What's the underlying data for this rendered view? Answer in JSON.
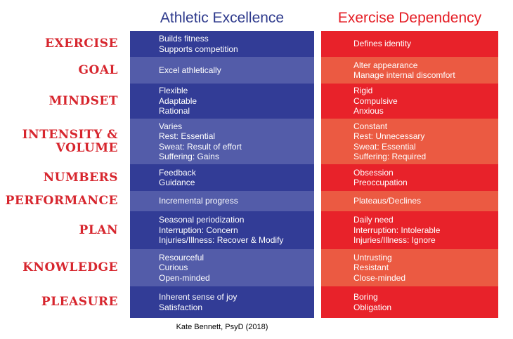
{
  "headers": {
    "left": "Athletic Excellence",
    "right": "Exercise Dependency"
  },
  "rows": [
    {
      "label": [
        "EXERCISE"
      ],
      "left": [
        "Builds fitness",
        "Supports competition"
      ],
      "right": [
        "Defines identity"
      ]
    },
    {
      "label": [
        "GOAL"
      ],
      "left": [
        "Excel athletically"
      ],
      "right": [
        "Alter appearance",
        "Manage internal discomfort"
      ]
    },
    {
      "label": [
        "MINDSET"
      ],
      "left": [
        "Flexible",
        "Adaptable",
        "Rational"
      ],
      "right": [
        "Rigid",
        "Compulsive",
        "Anxious"
      ]
    },
    {
      "label": [
        "INTENSITY &",
        "VOLUME"
      ],
      "left": [
        "Varies",
        "Rest: Essential",
        "Sweat: Result of effort",
        "Suffering: Gains"
      ],
      "right": [
        "Constant",
        "Rest: Unnecessary",
        "Sweat: Essential",
        "Suffering: Required"
      ]
    },
    {
      "label": [
        "NUMBERS"
      ],
      "left": [
        "Feedback",
        "Guidance"
      ],
      "right": [
        "Obsession",
        "Preoccupation"
      ]
    },
    {
      "label": [
        "PERFORMANCE"
      ],
      "left": [
        "Incremental progress"
      ],
      "right": [
        "Plateaus/Declines"
      ]
    },
    {
      "label": [
        "PLAN"
      ],
      "left": [
        "Seasonal periodization",
        "Interruption: Concern",
        "Injuries/Illness: Recover & Modify"
      ],
      "right": [
        "Daily need",
        "Interruption: Intolerable",
        "Injuries/Illness: Ignore"
      ]
    },
    {
      "label": [
        "KNOWLEDGE"
      ],
      "left": [
        "Resourceful",
        "Curious",
        "Open-minded"
      ],
      "right": [
        "Untrusting",
        "Resistant",
        "Close-minded"
      ]
    },
    {
      "label": [
        "PLEASURE"
      ],
      "left": [
        "Inherent sense of joy",
        "Satisfaction"
      ],
      "right": [
        "Boring",
        "Obligation"
      ]
    }
  ],
  "credit": "Kate Bennett, PsyD (2018)",
  "colors": {
    "left_dark": "#323c96",
    "left_light": "#535ca9",
    "right_dark": "#e8222a",
    "right_light": "#eb5a42",
    "label": "#d7262e"
  }
}
